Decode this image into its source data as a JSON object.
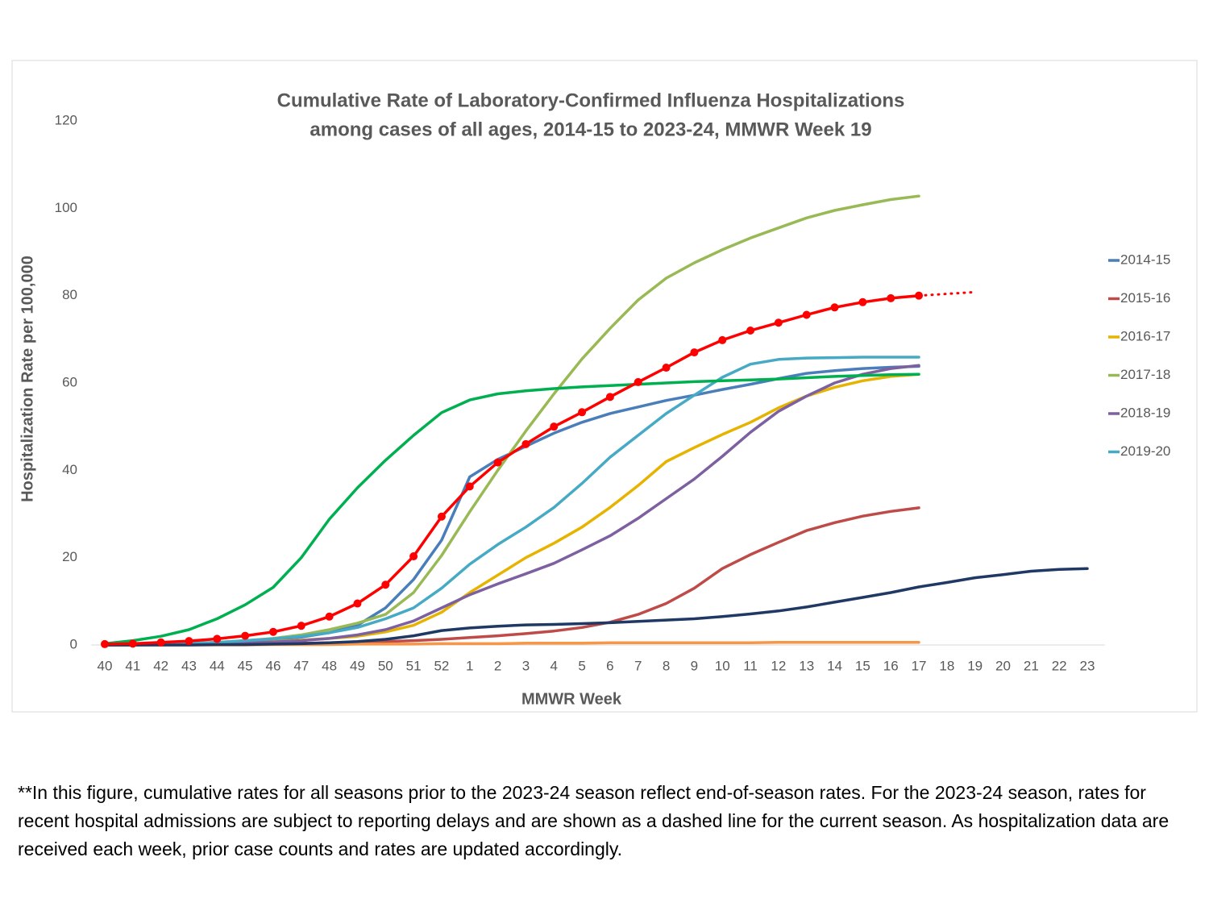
{
  "chart_data": {
    "type": "line",
    "title": [
      "Cumulative Rate of Laboratory-Confirmed Influenza Hospitalizations",
      "among cases of all ages, 2014-15 to 2023-24, MMWR Week 19"
    ],
    "x_label": "MMWR Week",
    "y_label": "Hospitalization Rate per 100,000",
    "footnote": "**In this figure, cumulative rates for all seasons prior to the 2023-24 season reflect end-of-season rates. For the 2023-24 season, rates for recent hospital admissions are subject to reporting delays and are shown as a dashed line for the current season. As hospitalization data are received each week, prior case counts and rates are updated accordingly.",
    "categories": [
      40,
      41,
      42,
      43,
      44,
      45,
      46,
      47,
      48,
      49,
      50,
      51,
      52,
      1,
      2,
      3,
      4,
      5,
      6,
      7,
      8,
      9,
      10,
      11,
      12,
      13,
      14,
      15,
      16,
      17,
      18,
      19,
      20,
      21,
      22,
      23
    ],
    "ylim": [
      0,
      120
    ],
    "yticks": [
      0,
      20,
      40,
      60,
      80,
      100,
      120
    ],
    "grid": false,
    "legend": "right",
    "series": [
      {
        "name": "2014-15",
        "color": "#4a7ebb",
        "values": [
          0,
          0.1,
          0.2,
          0.3,
          0.5,
          0.8,
          1.2,
          1.8,
          2.8,
          4.5,
          8.5,
          15,
          24,
          38.5,
          42.5,
          45.5,
          48.5,
          51,
          53,
          54.5,
          56,
          57.2,
          58.5,
          59.7,
          61,
          62.2,
          62.8,
          63.3,
          63.6,
          63.8,
          null,
          null,
          null,
          null,
          null,
          null
        ]
      },
      {
        "name": "2015-16",
        "color": "#be4b48",
        "values": [
          0,
          0,
          0.1,
          0.1,
          0.2,
          0.2,
          0.3,
          0.4,
          0.5,
          0.6,
          0.8,
          1,
          1.3,
          1.7,
          2.1,
          2.6,
          3.2,
          4,
          5.2,
          7,
          9.5,
          13,
          17.5,
          20.7,
          23.5,
          26.2,
          28,
          29.5,
          30.6,
          31.4,
          null,
          null,
          null,
          null,
          null,
          null
        ]
      },
      {
        "name": "2016-17",
        "color": "#e6b400",
        "values": [
          0,
          0,
          0.1,
          0.2,
          0.3,
          0.5,
          0.8,
          1.1,
          1.5,
          2,
          3,
          4.5,
          7.5,
          12,
          16,
          20,
          23.3,
          27,
          31.5,
          36.5,
          42,
          45.2,
          48.2,
          51,
          54.3,
          57,
          59,
          60.5,
          61.5,
          62,
          null,
          null,
          null,
          null,
          null,
          null
        ]
      },
      {
        "name": "2017-18",
        "color": "#98b954",
        "values": [
          0,
          0.1,
          0.2,
          0.3,
          0.6,
          1,
          1.5,
          2.3,
          3.5,
          5,
          7,
          12,
          20.5,
          30.5,
          40,
          49,
          57.5,
          65.5,
          72.5,
          79,
          84,
          87.5,
          90.5,
          93.2,
          95.5,
          97.8,
          99.5,
          100.8,
          102,
          102.8,
          null,
          null,
          null,
          null,
          null,
          null
        ]
      },
      {
        "name": "2018-19",
        "color": "#7d60a0",
        "values": [
          0,
          0,
          0.1,
          0.2,
          0.3,
          0.5,
          0.7,
          1,
          1.5,
          2.3,
          3.5,
          5.5,
          8.5,
          11.5,
          14,
          16.3,
          18.7,
          21.8,
          25,
          29,
          33.5,
          38,
          43.2,
          48.7,
          53.5,
          57,
          60,
          62,
          63.3,
          64,
          null,
          null,
          null,
          null,
          null,
          null
        ]
      },
      {
        "name": "2019-20",
        "color": "#46aac5",
        "values": [
          0,
          0.1,
          0.2,
          0.4,
          0.6,
          1,
          1.4,
          2,
          2.8,
          4,
          6,
          8.5,
          13,
          18.5,
          23,
          27,
          31.5,
          37,
          43,
          48,
          53,
          57.2,
          61.3,
          64.3,
          65.4,
          65.7,
          65.8,
          65.9,
          65.9,
          65.9,
          null,
          null,
          null,
          null,
          null,
          null
        ]
      },
      {
        "color": "#f79646",
        "values": [
          0,
          0,
          0,
          0,
          0,
          0,
          0.1,
          0.1,
          0.1,
          0.2,
          0.2,
          0.2,
          0.3,
          0.3,
          0.3,
          0.4,
          0.4,
          0.4,
          0.5,
          0.5,
          0.5,
          0.5,
          0.5,
          0.5,
          0.6,
          0.6,
          0.6,
          0.6,
          0.6,
          0.6,
          null,
          null,
          null,
          null,
          null,
          null
        ]
      },
      {
        "color": "#1f3864",
        "values": [
          0,
          0,
          0,
          0,
          0.1,
          0.1,
          0.2,
          0.3,
          0.5,
          0.8,
          1.3,
          2.1,
          3.3,
          3.9,
          4.3,
          4.6,
          4.7,
          4.9,
          5.1,
          5.4,
          5.7,
          6,
          6.5,
          7.1,
          7.8,
          8.7,
          9.8,
          10.9,
          12,
          13.3,
          14.3,
          15.4,
          16.1,
          16.9,
          17.3,
          17.5
        ]
      },
      {
        "color": "#00b050",
        "values": [
          0.3,
          1,
          2,
          3.5,
          6,
          9.2,
          13.2,
          20,
          28.8,
          36,
          42.3,
          48,
          53.2,
          56.1,
          57.5,
          58.2,
          58.7,
          59.1,
          59.4,
          59.7,
          60,
          60.3,
          60.5,
          60.7,
          60.9,
          61.2,
          61.5,
          61.7,
          61.9,
          62,
          null,
          null,
          null,
          null,
          null,
          null
        ]
      },
      {
        "color": "#ff0000",
        "markers": true,
        "values": [
          0.2,
          0.3,
          0.6,
          0.9,
          1.4,
          2.1,
          3,
          4.4,
          6.5,
          9.5,
          13.8,
          20.3,
          29.4,
          36.3,
          41.8,
          46,
          50,
          53.3,
          56.8,
          60.2,
          63.5,
          67,
          69.8,
          72,
          73.8,
          75.6,
          77.3,
          78.5,
          79.4,
          80,
          null,
          null,
          null,
          null,
          null,
          null
        ]
      },
      {
        "color": "#ff0000",
        "dotted": true,
        "values": [
          null,
          null,
          null,
          null,
          null,
          null,
          null,
          null,
          null,
          null,
          null,
          null,
          null,
          null,
          null,
          null,
          null,
          null,
          null,
          null,
          null,
          null,
          null,
          null,
          null,
          null,
          null,
          null,
          null,
          80,
          80.4,
          80.8,
          null,
          null,
          null,
          null
        ]
      }
    ]
  }
}
